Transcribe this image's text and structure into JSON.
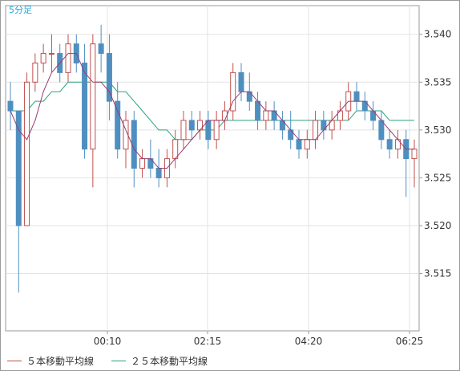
{
  "chart_data": {
    "type": "candlestick",
    "title": "5分足",
    "ylim": [
      3.509,
      3.543
    ],
    "y_ticks": [
      "3.515",
      "3.520",
      "3.525",
      "3.530",
      "3.535",
      "3.540"
    ],
    "x_ticks": [
      "00:10",
      "02:15",
      "04:20",
      "06:25"
    ],
    "grid": true,
    "legend": [
      "５本移動平均線",
      "２５本移動平均線"
    ],
    "colors": {
      "up": "#c0504d",
      "down": "#4f8fc0",
      "ma5": "#9b3c6e",
      "ma25": "#2aa37a"
    },
    "candles": [
      [
        3.533,
        3.535,
        3.53,
        3.532
      ],
      [
        3.532,
        3.532,
        3.513,
        3.52
      ],
      [
        3.52,
        3.536,
        3.52,
        3.535
      ],
      [
        3.535,
        3.538,
        3.534,
        3.537
      ],
      [
        3.537,
        3.539,
        3.536,
        3.538
      ],
      [
        3.538,
        3.54,
        3.536,
        3.538
      ],
      [
        3.538,
        3.539,
        3.535,
        3.536
      ],
      [
        3.536,
        3.54,
        3.535,
        3.539
      ],
      [
        3.539,
        3.54,
        3.536,
        3.537
      ],
      [
        3.537,
        3.539,
        3.527,
        3.528
      ],
      [
        3.528,
        3.54,
        3.524,
        3.539
      ],
      [
        3.539,
        3.541,
        3.536,
        3.538
      ],
      [
        3.538,
        3.54,
        3.531,
        3.533
      ],
      [
        3.533,
        3.535,
        3.527,
        3.528
      ],
      [
        3.528,
        3.532,
        3.526,
        3.531
      ],
      [
        3.531,
        3.532,
        3.524,
        3.526
      ],
      [
        3.526,
        3.528,
        3.525,
        3.527
      ],
      [
        3.527,
        3.529,
        3.525,
        3.526
      ],
      [
        3.526,
        3.528,
        3.524,
        3.525
      ],
      [
        3.525,
        3.528,
        3.524,
        3.527
      ],
      [
        3.527,
        3.53,
        3.526,
        3.529
      ],
      [
        3.529,
        3.532,
        3.528,
        3.531
      ],
      [
        3.531,
        3.532,
        3.529,
        3.53
      ],
      [
        3.53,
        3.532,
        3.529,
        3.531
      ],
      [
        3.531,
        3.532,
        3.528,
        3.529
      ],
      [
        3.529,
        3.532,
        3.528,
        3.531
      ],
      [
        3.531,
        3.533,
        3.53,
        3.532
      ],
      [
        3.532,
        3.537,
        3.531,
        3.536
      ],
      [
        3.536,
        3.537,
        3.533,
        3.534
      ],
      [
        3.534,
        3.536,
        3.532,
        3.533
      ],
      [
        3.533,
        3.534,
        3.53,
        3.531
      ],
      [
        3.531,
        3.533,
        3.53,
        3.532
      ],
      [
        3.532,
        3.533,
        3.53,
        3.531
      ],
      [
        3.531,
        3.532,
        3.529,
        3.53
      ],
      [
        3.53,
        3.532,
        3.528,
        3.529
      ],
      [
        3.529,
        3.53,
        3.527,
        3.528
      ],
      [
        3.528,
        3.53,
        3.527,
        3.529
      ],
      [
        3.529,
        3.532,
        3.528,
        3.531
      ],
      [
        3.531,
        3.532,
        3.529,
        3.53
      ],
      [
        3.53,
        3.532,
        3.529,
        3.531
      ],
      [
        3.531,
        3.533,
        3.53,
        3.532
      ],
      [
        3.532,
        3.535,
        3.531,
        3.534
      ],
      [
        3.534,
        3.535,
        3.532,
        3.533
      ],
      [
        3.533,
        3.534,
        3.531,
        3.532
      ],
      [
        3.532,
        3.533,
        3.53,
        3.531
      ],
      [
        3.531,
        3.532,
        3.528,
        3.529
      ],
      [
        3.529,
        3.53,
        3.527,
        3.528
      ],
      [
        3.528,
        3.53,
        3.527,
        3.529
      ],
      [
        3.529,
        3.53,
        3.523,
        3.527
      ],
      [
        3.527,
        3.529,
        3.524,
        3.528
      ]
    ],
    "ma5": [
      3.532,
      3.53,
      3.529,
      3.531,
      3.534,
      3.536,
      3.537,
      3.538,
      3.538,
      3.536,
      3.535,
      3.535,
      3.534,
      3.532,
      3.53,
      3.528,
      3.527,
      3.527,
      3.526,
      3.526,
      3.527,
      3.528,
      3.529,
      3.53,
      3.531,
      3.531,
      3.531,
      3.533,
      3.534,
      3.534,
      3.533,
      3.532,
      3.532,
      3.531,
      3.53,
      3.529,
      3.529,
      3.529,
      3.53,
      3.531,
      3.532,
      3.533,
      3.533,
      3.533,
      3.532,
      3.531,
      3.53,
      3.529,
      3.528,
      3.528
    ],
    "ma25": [
      3.532,
      3.532,
      3.532,
      3.533,
      3.533,
      3.534,
      3.534,
      3.535,
      3.535,
      3.535,
      3.535,
      3.535,
      3.535,
      3.534,
      3.534,
      3.533,
      3.532,
      3.531,
      3.53,
      3.53,
      3.529,
      3.529,
      3.529,
      3.53,
      3.53,
      3.53,
      3.531,
      3.531,
      3.531,
      3.531,
      3.531,
      3.531,
      3.531,
      3.531,
      3.531,
      3.531,
      3.531,
      3.531,
      3.531,
      3.531,
      3.531,
      3.531,
      3.532,
      3.532,
      3.532,
      3.532,
      3.531,
      3.531,
      3.531,
      3.531
    ]
  }
}
